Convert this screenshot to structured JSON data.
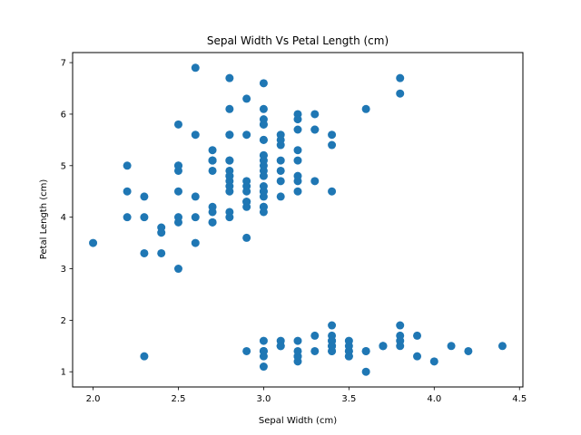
{
  "chart_data": {
    "type": "scatter",
    "title": "Sepal Width Vs Petal Length (cm)",
    "xlabel": "Sepal Width (cm)",
    "ylabel": "Petal Length (cm)",
    "xlim": [
      1.88,
      4.52
    ],
    "ylim": [
      0.705,
      7.195
    ],
    "xticks": [
      "2.0",
      "2.5",
      "3.0",
      "3.5",
      "4.0",
      "4.5"
    ],
    "yticks": [
      "1",
      "2",
      "3",
      "4",
      "5",
      "6",
      "7"
    ],
    "grid": false,
    "marker_color": "#1f77b4",
    "points": [
      [
        3.5,
        1.4
      ],
      [
        3.0,
        1.4
      ],
      [
        3.2,
        1.3
      ],
      [
        3.1,
        1.5
      ],
      [
        3.6,
        1.4
      ],
      [
        3.9,
        1.7
      ],
      [
        3.4,
        1.4
      ],
      [
        3.4,
        1.5
      ],
      [
        2.9,
        1.4
      ],
      [
        3.1,
        1.5
      ],
      [
        3.7,
        1.5
      ],
      [
        3.4,
        1.6
      ],
      [
        3.0,
        1.4
      ],
      [
        3.0,
        1.1
      ],
      [
        4.0,
        1.2
      ],
      [
        4.4,
        1.5
      ],
      [
        3.9,
        1.3
      ],
      [
        3.5,
        1.4
      ],
      [
        3.8,
        1.7
      ],
      [
        3.8,
        1.5
      ],
      [
        3.4,
        1.7
      ],
      [
        3.7,
        1.5
      ],
      [
        3.6,
        1.0
      ],
      [
        3.3,
        1.7
      ],
      [
        3.4,
        1.9
      ],
      [
        3.0,
        1.6
      ],
      [
        3.4,
        1.6
      ],
      [
        3.5,
        1.5
      ],
      [
        3.4,
        1.4
      ],
      [
        3.2,
        1.6
      ],
      [
        3.1,
        1.6
      ],
      [
        3.4,
        1.5
      ],
      [
        4.1,
        1.5
      ],
      [
        4.2,
        1.4
      ],
      [
        3.1,
        1.5
      ],
      [
        3.2,
        1.2
      ],
      [
        3.5,
        1.3
      ],
      [
        3.6,
        1.4
      ],
      [
        3.0,
        1.3
      ],
      [
        3.4,
        1.5
      ],
      [
        3.5,
        1.3
      ],
      [
        2.3,
        1.3
      ],
      [
        3.2,
        1.3
      ],
      [
        3.5,
        1.6
      ],
      [
        3.8,
        1.9
      ],
      [
        3.0,
        1.4
      ],
      [
        3.8,
        1.6
      ],
      [
        3.2,
        1.4
      ],
      [
        3.7,
        1.5
      ],
      [
        3.3,
        1.4
      ],
      [
        3.2,
        4.7
      ],
      [
        3.2,
        4.5
      ],
      [
        3.1,
        4.9
      ],
      [
        2.3,
        4.0
      ],
      [
        2.8,
        4.6
      ],
      [
        2.8,
        4.5
      ],
      [
        3.3,
        4.7
      ],
      [
        2.4,
        3.3
      ],
      [
        2.9,
        4.6
      ],
      [
        2.7,
        3.9
      ],
      [
        2.0,
        3.5
      ],
      [
        3.0,
        4.2
      ],
      [
        2.2,
        4.0
      ],
      [
        2.9,
        4.7
      ],
      [
        2.9,
        3.6
      ],
      [
        3.1,
        4.4
      ],
      [
        3.0,
        4.5
      ],
      [
        2.7,
        4.1
      ],
      [
        2.2,
        4.5
      ],
      [
        2.5,
        3.9
      ],
      [
        3.2,
        4.8
      ],
      [
        2.8,
        4.0
      ],
      [
        2.5,
        4.9
      ],
      [
        2.8,
        4.7
      ],
      [
        2.9,
        4.3
      ],
      [
        3.0,
        4.4
      ],
      [
        2.8,
        4.8
      ],
      [
        3.0,
        5.0
      ],
      [
        2.9,
        4.5
      ],
      [
        2.6,
        3.5
      ],
      [
        2.4,
        3.8
      ],
      [
        2.4,
        3.7
      ],
      [
        2.7,
        3.9
      ],
      [
        2.7,
        5.1
      ],
      [
        3.0,
        4.5
      ],
      [
        3.4,
        4.5
      ],
      [
        3.1,
        4.7
      ],
      [
        2.3,
        4.4
      ],
      [
        3.0,
        4.1
      ],
      [
        2.5,
        4.0
      ],
      [
        2.6,
        4.4
      ],
      [
        3.0,
        4.6
      ],
      [
        2.6,
        4.0
      ],
      [
        2.3,
        3.3
      ],
      [
        2.7,
        4.2
      ],
      [
        3.0,
        4.2
      ],
      [
        2.9,
        4.2
      ],
      [
        2.9,
        4.3
      ],
      [
        2.5,
        3.0
      ],
      [
        2.8,
        4.1
      ],
      [
        3.3,
        6.0
      ],
      [
        2.7,
        5.1
      ],
      [
        3.0,
        5.9
      ],
      [
        2.9,
        5.6
      ],
      [
        3.0,
        5.8
      ],
      [
        3.0,
        6.6
      ],
      [
        2.5,
        4.5
      ],
      [
        2.9,
        6.3
      ],
      [
        2.5,
        5.8
      ],
      [
        3.6,
        6.1
      ],
      [
        3.2,
        5.1
      ],
      [
        2.7,
        5.3
      ],
      [
        3.0,
        5.5
      ],
      [
        2.5,
        5.0
      ],
      [
        2.8,
        5.1
      ],
      [
        3.2,
        5.3
      ],
      [
        3.0,
        5.5
      ],
      [
        3.8,
        6.7
      ],
      [
        2.6,
        6.9
      ],
      [
        2.2,
        5.0
      ],
      [
        3.2,
        5.7
      ],
      [
        2.8,
        4.9
      ],
      [
        2.8,
        6.7
      ],
      [
        2.7,
        4.9
      ],
      [
        3.3,
        5.7
      ],
      [
        3.2,
        6.0
      ],
      [
        2.8,
        4.8
      ],
      [
        3.0,
        4.9
      ],
      [
        2.8,
        5.6
      ],
      [
        3.0,
        5.8
      ],
      [
        2.8,
        6.1
      ],
      [
        3.8,
        6.4
      ],
      [
        2.8,
        5.6
      ],
      [
        2.8,
        5.1
      ],
      [
        2.6,
        5.6
      ],
      [
        3.0,
        6.1
      ],
      [
        3.4,
        5.6
      ],
      [
        3.1,
        5.5
      ],
      [
        3.0,
        4.8
      ],
      [
        3.1,
        5.4
      ],
      [
        3.1,
        5.6
      ],
      [
        3.1,
        5.1
      ],
      [
        2.7,
        5.1
      ],
      [
        3.2,
        5.9
      ],
      [
        3.3,
        5.7
      ],
      [
        3.0,
        5.2
      ],
      [
        2.5,
        5.0
      ],
      [
        3.0,
        5.2
      ],
      [
        3.4,
        5.4
      ],
      [
        3.0,
        5.1
      ]
    ]
  }
}
